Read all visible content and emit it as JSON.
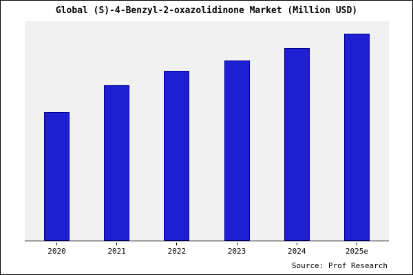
{
  "title": "Global (S)-4-Benzyl-2-oxazolidinone Market (Million USD)",
  "source": "Source: Prof Research",
  "colors": {
    "bar_fill": "#1e1ed2",
    "bar_edge": "#00008b",
    "plot_background": "#f1f1f1",
    "axis": "#000000"
  },
  "chart_data": {
    "type": "bar",
    "title": "Global (S)-4-Benzyl-2-oxazolidinone Market (Million USD)",
    "categories": [
      "2020",
      "2021",
      "2022",
      "2023",
      "2024",
      "2025e"
    ],
    "values": [
      62,
      75,
      82,
      87,
      93,
      100
    ],
    "xlabel": "",
    "ylabel": "",
    "ylim": [
      0,
      105
    ],
    "grid": false,
    "legend": false,
    "annotation": "Source: Prof Research"
  }
}
